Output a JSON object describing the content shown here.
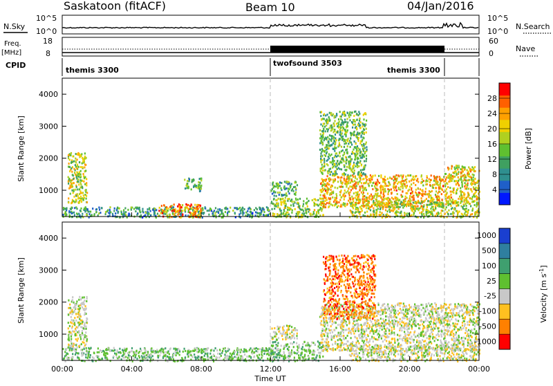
{
  "header": {
    "station": "Saskatoon (fitACF)",
    "beam": "Beam 10",
    "date": "04/Jan/2016"
  },
  "nsky_panel": {
    "left_label": "N.Sky",
    "left_ticks": [
      "10^5",
      "10^0"
    ],
    "right_label": "N.Search",
    "right_ticks": [
      "10^5",
      "10^0"
    ]
  },
  "freq_panel": {
    "left_label_line1": "Freq.",
    "left_label_line2": "[MHz]",
    "left_ticks": [
      "18",
      "8"
    ],
    "right_label": "Nave",
    "right_ticks": [
      "60",
      "0"
    ]
  },
  "cpid": {
    "label": "CPID",
    "segments": [
      {
        "name": "themis 3300",
        "start": 0,
        "end": 12
      },
      {
        "name": "twofsound 3503",
        "start": 12,
        "end": 22
      },
      {
        "name": "themis 3300",
        "start": 22,
        "end": 24
      }
    ]
  },
  "chart_data": [
    {
      "type": "heatmap",
      "quantity": "power",
      "ylabel": "Slant Range [km]",
      "xlim": [
        0,
        24
      ],
      "ylim": [
        180,
        4500
      ],
      "yticks": [
        "1000",
        "2000",
        "3000",
        "4000"
      ],
      "yticks_values": [
        1000,
        2000,
        3000,
        4000
      ],
      "colorbar": {
        "label": "Power [dB]",
        "ticks": [
          "4",
          "8",
          "12",
          "16",
          "20",
          "24",
          "28"
        ],
        "tick_values": [
          4,
          8,
          12,
          16,
          20,
          24,
          28
        ],
        "range": [
          0,
          32
        ],
        "colors": [
          "#0018ff",
          "#1f5fc8",
          "#2f8f8f",
          "#3fa060",
          "#5fc030",
          "#b0d020",
          "#f0d000",
          "#ffa000",
          "#ff6000",
          "#ff0000"
        ]
      },
      "scatter_regions": [
        {
          "t0": 0.3,
          "t1": 1.4,
          "r0": 600,
          "r1": 2200,
          "level": 18
        },
        {
          "t0": 0.0,
          "t1": 12.0,
          "r0": 180,
          "r1": 500,
          "level": 10
        },
        {
          "t0": 5.5,
          "t1": 8.0,
          "r0": 180,
          "r1": 600,
          "level": 24
        },
        {
          "t0": 7.0,
          "t1": 8.0,
          "r0": 1000,
          "r1": 1400,
          "level": 12
        },
        {
          "t0": 12.0,
          "t1": 13.5,
          "r0": 850,
          "r1": 1300,
          "level": 12
        },
        {
          "t0": 12.0,
          "t1": 15.0,
          "r0": 180,
          "r1": 800,
          "level": 16
        },
        {
          "t0": 14.8,
          "t1": 22.0,
          "r0": 500,
          "r1": 1500,
          "level": 22
        },
        {
          "t0": 14.8,
          "t1": 17.5,
          "r0": 1500,
          "r1": 3500,
          "level": 14
        },
        {
          "t0": 16.5,
          "t1": 24.0,
          "r0": 180,
          "r1": 700,
          "level": 18
        },
        {
          "t0": 22.0,
          "t1": 24.0,
          "r0": 600,
          "r1": 1800,
          "level": 20
        }
      ]
    },
    {
      "type": "heatmap",
      "quantity": "velocity",
      "ylabel": "Slant Range [km]",
      "xlabel": "Time UT",
      "xlim": [
        0,
        24
      ],
      "ylim": [
        180,
        4500
      ],
      "xticks": [
        "00:00",
        "04:00",
        "08:00",
        "12:00",
        "16:00",
        "20:00",
        "00:00"
      ],
      "xticks_values": [
        0,
        4,
        8,
        12,
        16,
        20,
        24
      ],
      "yticks": [
        "1000",
        "2000",
        "3000",
        "4000"
      ],
      "yticks_values": [
        1000,
        2000,
        3000,
        4000
      ],
      "colorbar": {
        "label": "Velocity [m s^-1]",
        "ticks": [
          "1000",
          "500",
          "100",
          "25",
          "-25",
          "-100",
          "-500",
          "-1000"
        ],
        "colors": [
          "#1a3fd0",
          "#2f7f9f",
          "#3f9f6f",
          "#5fc030",
          "#c8c8c8",
          "#ffc020",
          "#ff8000",
          "#ff0000"
        ]
      },
      "scatter_regions": [
        {
          "t0": 0.3,
          "t1": 1.4,
          "r0": 600,
          "r1": 2200,
          "level": 4
        },
        {
          "t0": 0.0,
          "t1": 12.0,
          "r0": 180,
          "r1": 600,
          "level": 3
        },
        {
          "t0": 12.0,
          "t1": 13.5,
          "r0": 850,
          "r1": 1300,
          "level": 4
        },
        {
          "t0": 12.0,
          "t1": 15.0,
          "r0": 180,
          "r1": 800,
          "level": 3
        },
        {
          "t0": 14.8,
          "t1": 24.0,
          "r0": 500,
          "r1": 2000,
          "level": 4
        },
        {
          "t0": 15.0,
          "t1": 18.0,
          "r0": 1500,
          "r1": 3500,
          "level": 6
        },
        {
          "t0": 16.5,
          "t1": 24.0,
          "r0": 180,
          "r1": 700,
          "level": 4
        }
      ]
    }
  ]
}
